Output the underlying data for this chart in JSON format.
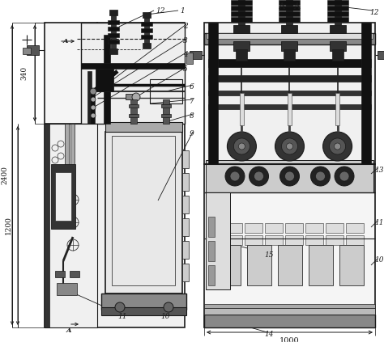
{
  "bg_color": "#ffffff",
  "lc": "#1a1a1a",
  "fig_width": 4.74,
  "fig_height": 4.23,
  "dpi": 100
}
